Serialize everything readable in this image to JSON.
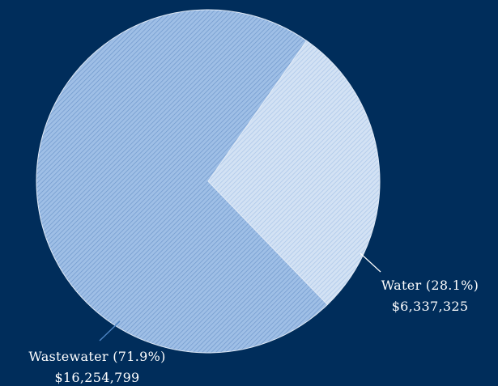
{
  "chart_data": {
    "type": "pie",
    "title": "",
    "slices": [
      {
        "name": "Water",
        "percent_label": "Water (28.1%)",
        "value_label": "$6,337,325",
        "value": 6337325,
        "percent": 28.1,
        "color": "#c6d9f0"
      },
      {
        "name": "Wastewater",
        "percent_label": "Wastewater (71.9%)",
        "value_label": "$16,254,799",
        "value": 16254799,
        "percent": 71.9,
        "color": "#8db3e2"
      }
    ],
    "legend": "none",
    "background_color": "#002d5b"
  }
}
